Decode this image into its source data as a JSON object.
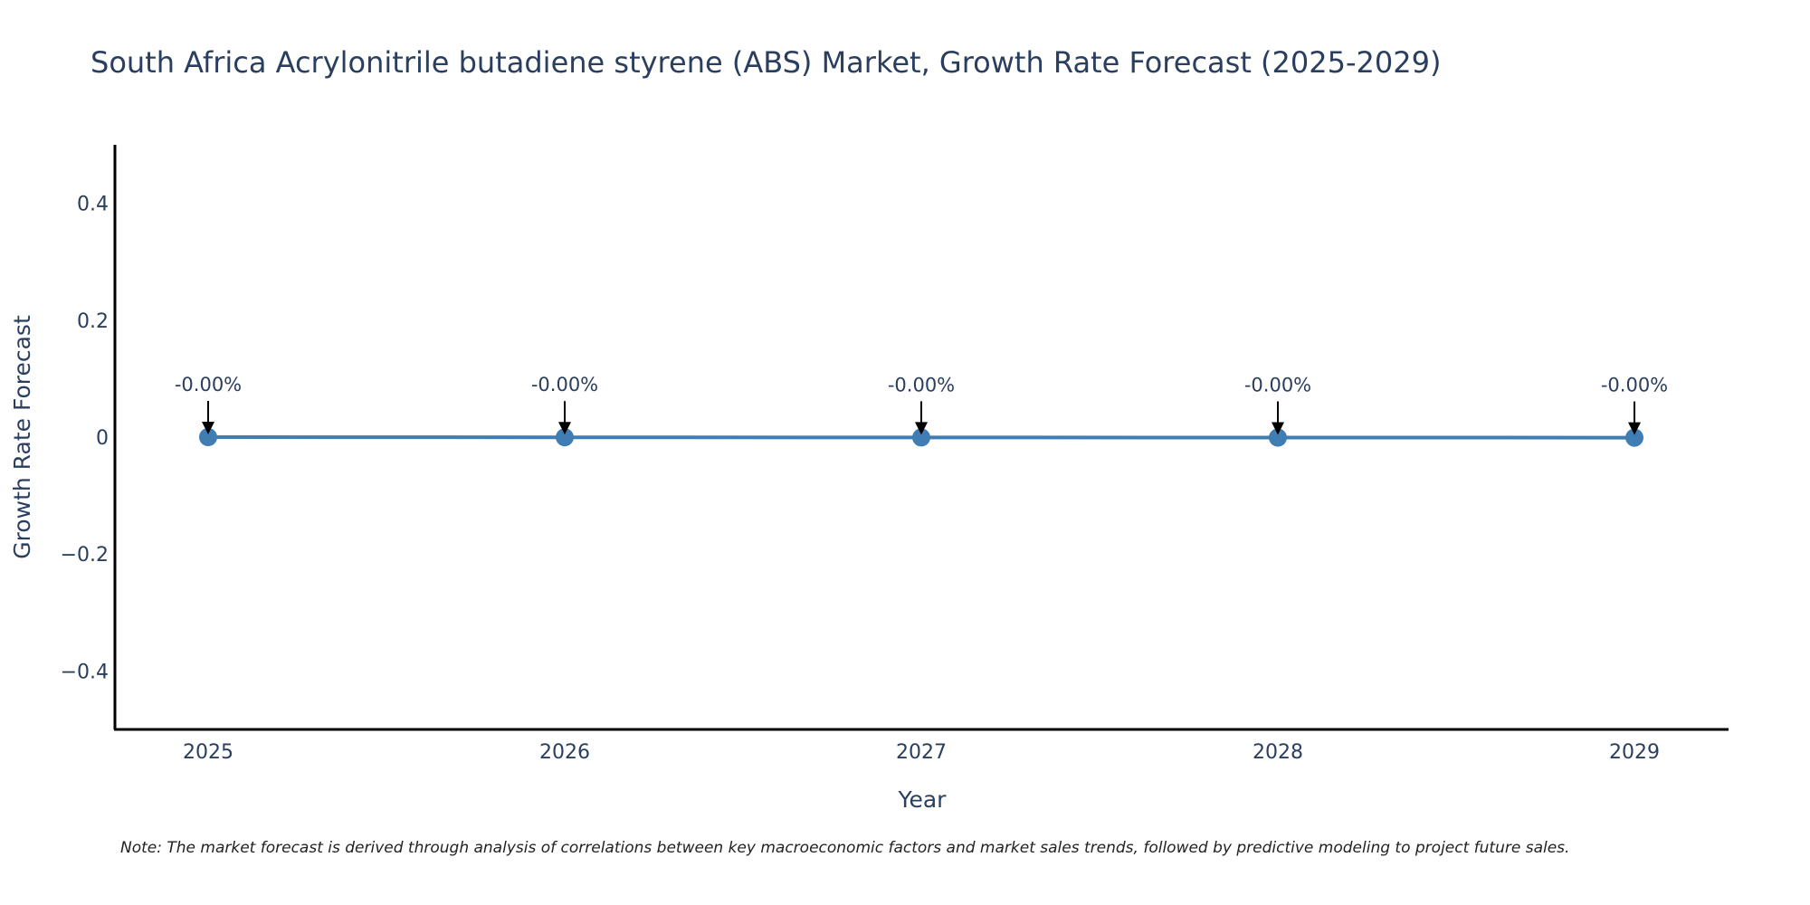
{
  "chart_data": {
    "type": "line",
    "title": "South Africa Acrylonitrile butadiene styrene (ABS) Market, Growth Rate Forecast (2025-2029)",
    "xlabel": "Year",
    "ylabel": "Growth Rate Forecast",
    "x": [
      "2025",
      "2026",
      "2027",
      "2028",
      "2029"
    ],
    "series": [
      {
        "values": [
          0,
          -0.0003,
          -0.0006,
          -0.0008,
          -0.0009
        ],
        "color": "#3f7db3"
      }
    ],
    "annotations": [
      "-0.00%",
      "-0.00%",
      "-0.00%",
      "-0.00%",
      "-0.00%"
    ],
    "ylim": [
      -0.5,
      0.5
    ],
    "yticks": [
      0.4,
      0.2,
      0,
      -0.2,
      -0.4
    ],
    "ytick_labels": [
      "0.4",
      "0.2",
      "0",
      "−0.2",
      "−0.4"
    ],
    "grid": false,
    "legend": "none"
  },
  "note": "Note: The market forecast is derived through analysis of correlations between key macroeconomic factors and market sales trends, followed by predictive modeling to project future sales."
}
